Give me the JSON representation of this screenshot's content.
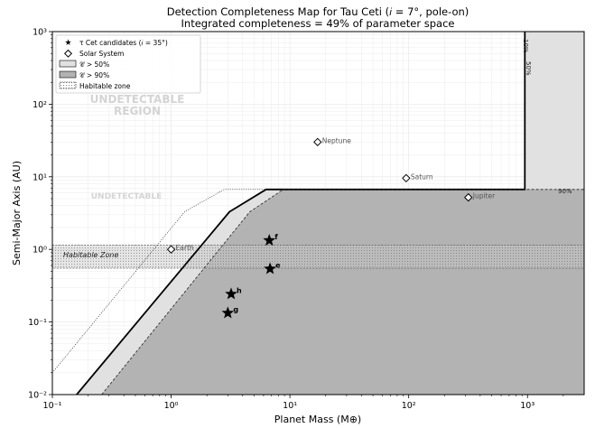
{
  "chart_data": {
    "type": "scatter",
    "title": "Detection Completeness Map for Tau Ceti (𝑖 = 7°, pole-on)",
    "subtitle": "Integrated completeness = 49% of parameter space",
    "xlabel": "Planet Mass (M⊕)",
    "ylabel": "Semi-Major Axis (AU)",
    "x_scale": "log",
    "y_scale": "log",
    "xlim": [
      0.1,
      3000
    ],
    "ylim": [
      0.01,
      1000
    ],
    "x_ticks": [
      0.1,
      1,
      10,
      100,
      1000
    ],
    "y_ticks": [
      0.01,
      0.1,
      1,
      10,
      100,
      1000
    ],
    "x_tick_labels": [
      "10⁻¹",
      "10⁰",
      "10¹",
      "10²",
      "10³"
    ],
    "y_tick_labels": [
      "10⁻²",
      "10⁻¹",
      "10⁰",
      "10¹",
      "10²",
      "10³"
    ],
    "grid": true,
    "legend_position": "top-left",
    "legend": [
      {
        "symbol": "star",
        "label": "τ Cet candidates (𝑖 = 35°)"
      },
      {
        "symbol": "diamond",
        "label": "Solar System"
      },
      {
        "symbol": "light-fill",
        "label": "𝒞 > 50%"
      },
      {
        "symbol": "dark-fill",
        "label": "𝒞 > 90%"
      },
      {
        "symbol": "dotted-fill",
        "label": "Habitable zone"
      }
    ],
    "series": [
      {
        "name": "τ Cet candidates (𝑖 = 35°)",
        "marker": "star",
        "points": [
          {
            "label": "f",
            "x": 6.7,
            "y": 1.33
          },
          {
            "label": "e",
            "x": 6.8,
            "y": 0.54
          },
          {
            "label": "h",
            "x": 3.2,
            "y": 0.243
          },
          {
            "label": "g",
            "x": 3.0,
            "y": 0.133
          }
        ]
      },
      {
        "name": "Solar System",
        "marker": "diamond",
        "points": [
          {
            "label": "Earth",
            "x": 1.0,
            "y": 1.0
          },
          {
            "label": "Neptune",
            "x": 17.1,
            "y": 30.1
          },
          {
            "label": "Saturn",
            "x": 95.2,
            "y": 9.58
          },
          {
            "label": "Jupiter",
            "x": 317.8,
            "y": 5.2
          }
        ]
      }
    ],
    "regions": {
      "habitable_zone": {
        "label": "Habitable Zone",
        "y_range": [
          0.55,
          1.15
        ]
      },
      "completeness_50": {
        "label": "𝒞 > 50%",
        "boundary": [
          [
            0.16,
            0.01
          ],
          [
            3.1,
            3.3
          ],
          [
            6.3,
            6.7
          ],
          [
            950,
            6.7
          ],
          [
            950,
            1000
          ]
        ]
      },
      "completeness_90": {
        "label": "𝒞 > 90%",
        "boundary": [
          [
            0.26,
            0.01
          ],
          [
            4.6,
            3.3
          ],
          [
            8.8,
            6.7
          ],
          [
            3000,
            6.7
          ]
        ]
      },
      "contour_10_label": "10%",
      "contour_50_label": "50%",
      "contour_90_label": "90%",
      "contour_10_boundary": [
        [
          0.1,
          0.02
        ],
        [
          1.3,
          3.3
        ],
        [
          2.8,
          6.7
        ],
        [
          950,
          6.7
        ]
      ]
    },
    "annotations": [
      "UNDETECTABLE",
      "REGION",
      "UNDETECTABLE"
    ],
    "colors": {
      "fill_50": "#e1e1e1",
      "fill_90": "#b3b3b3",
      "habitable_zone": "#c8c8c8",
      "grid": "#ebebeb",
      "annotation": "#d4d4d4"
    }
  }
}
